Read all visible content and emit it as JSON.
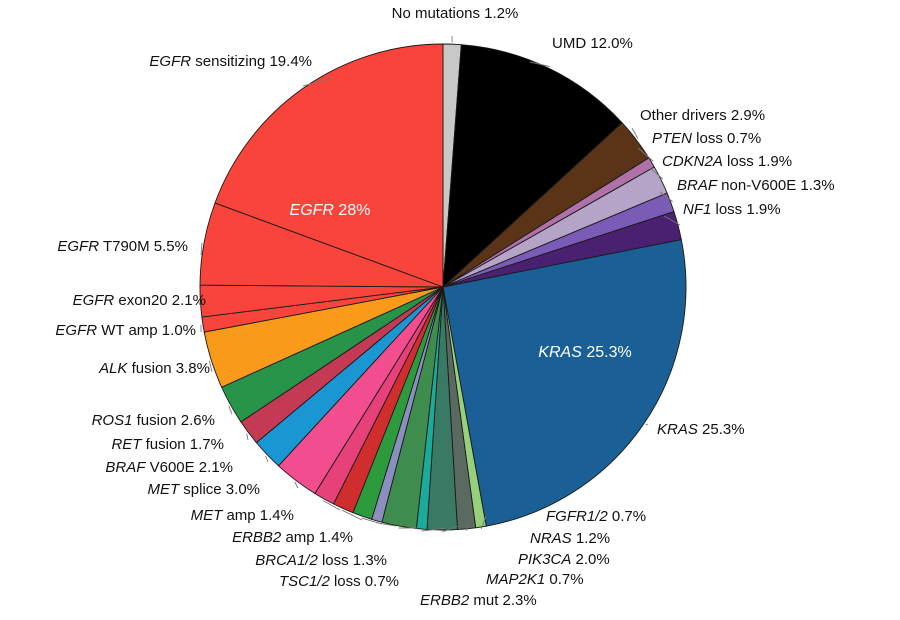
{
  "chart_data": {
    "type": "pie",
    "slices": [
      {
        "gene": "",
        "rest": "No mutations 1.2%",
        "value": 1.2,
        "color": "#c8c8c8"
      },
      {
        "gene": "",
        "rest": "UMD 12.0%",
        "value": 12.0,
        "color": "#000000"
      },
      {
        "gene": "",
        "rest": "Other drivers 2.9%",
        "value": 2.9,
        "color": "#5b3418"
      },
      {
        "gene": "PTEN",
        "rest": " loss 0.7%",
        "value": 0.7,
        "color": "#b070a8"
      },
      {
        "gene": "CDKN2A",
        "rest": " loss 1.9%",
        "value": 1.9,
        "color": "#b4a4c8"
      },
      {
        "gene": "BRAF",
        "rest": " non-V600E 1.3%",
        "value": 1.3,
        "color": "#7a5bb5"
      },
      {
        "gene": "NF1",
        "rest": " loss 1.9%",
        "value": 1.9,
        "color": "#4a2170"
      },
      {
        "gene": "KRAS",
        "rest": " 25.3%",
        "value": 25.3,
        "color": "#1a5f95"
      },
      {
        "gene": "FGFR1/2",
        "rest": " 0.7%",
        "value": 0.7,
        "color": "#96d07a"
      },
      {
        "gene": "NRAS",
        "rest": " 1.2%",
        "value": 1.2,
        "color": "#5a6a60"
      },
      {
        "gene": "PIK3CA",
        "rest": " 2.0%",
        "value": 2.0,
        "color": "#3a7a64"
      },
      {
        "gene": "MAP2K1",
        "rest": " 0.7%",
        "value": 0.7,
        "color": "#1aab9b"
      },
      {
        "gene": "ERBB2",
        "rest": " mut 2.3%",
        "value": 2.3,
        "color": "#3f8d4e"
      },
      {
        "gene": "TSC1/2",
        "rest": " loss 0.7%",
        "value": 0.7,
        "color": "#8a8fc0"
      },
      {
        "gene": "BRCA1/2",
        "rest": " loss 1.3%",
        "value": 1.3,
        "color": "#2e9a3e"
      },
      {
        "gene": "ERBB2",
        "rest": " amp 1.4%",
        "value": 1.4,
        "color": "#d02e2e"
      },
      {
        "gene": "MET",
        "rest": " amp 1.4%",
        "value": 1.4,
        "color": "#e7417a"
      },
      {
        "gene": "MET",
        "rest": " splice 3.0%",
        "value": 3.0,
        "color": "#f24d8e"
      },
      {
        "gene": "BRAF",
        "rest": " V600E 2.1%",
        "value": 2.1,
        "color": "#1a96d2"
      },
      {
        "gene": "RET",
        "rest": " fusion 1.7%",
        "value": 1.7,
        "color": "#c43a55"
      },
      {
        "gene": "ROS1",
        "rest": " fusion 2.6%",
        "value": 2.6,
        "color": "#27944a"
      },
      {
        "gene": "ALK",
        "rest": " fusion 3.8%",
        "value": 3.8,
        "color": "#fa9a1a"
      },
      {
        "gene": "EGFR",
        "rest": " WT amp 1.0%",
        "value": 1.0,
        "color": "#f8443a"
      },
      {
        "gene": "EGFR",
        "rest": " exon20 2.1%",
        "value": 2.1,
        "color": "#f8443a"
      },
      {
        "gene": "EGFR",
        "rest": " T790M 5.5%",
        "value": 5.5,
        "color": "#f8443a"
      },
      {
        "gene": "EGFR",
        "rest": " sensitizing 19.4%",
        "value": 19.4,
        "color": "#f8443a"
      }
    ],
    "inner_labels": [
      {
        "gene": "EGFR",
        "rest": " 28%"
      },
      {
        "gene": "KRAS",
        "rest": " 25.3%"
      }
    ]
  }
}
